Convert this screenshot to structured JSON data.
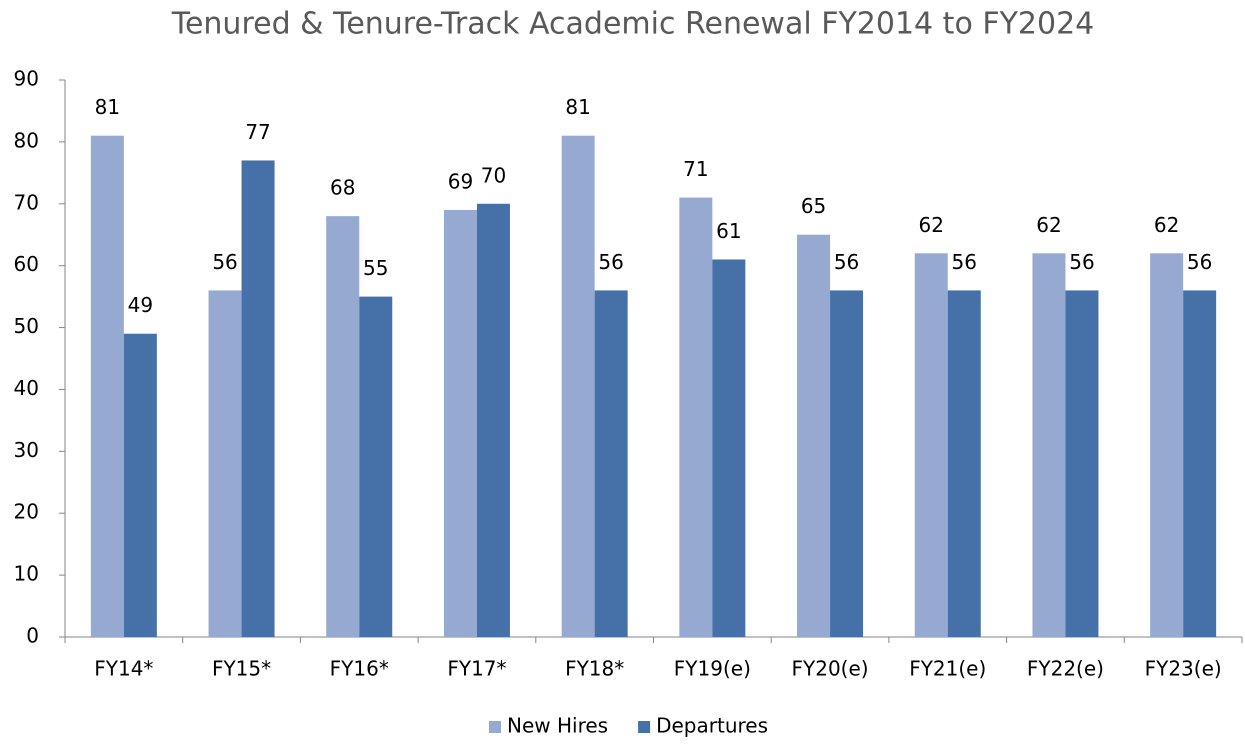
{
  "chart_data": {
    "type": "bar",
    "title": "Tenured & Tenure-Track Academic Renewal FY2014 to FY2024",
    "categories": [
      "FY14*",
      "FY15*",
      "FY16*",
      "FY17*",
      "FY18*",
      "FY19(e)",
      "FY20(e)",
      "FY21(e)",
      "FY22(e)",
      "FY23(e)"
    ],
    "series": [
      {
        "name": "New Hires",
        "color": "#95a9d1",
        "values": [
          81,
          56,
          68,
          69,
          81,
          71,
          65,
          62,
          62,
          62
        ]
      },
      {
        "name": "Departures",
        "color": "#4571a8",
        "values": [
          49,
          77,
          55,
          70,
          56,
          61,
          56,
          56,
          56,
          56
        ]
      }
    ],
    "ylim": [
      0,
      90
    ],
    "yticks": [
      0,
      10,
      20,
      30,
      40,
      50,
      60,
      70,
      80,
      90
    ],
    "grid": false,
    "legend": "bottom"
  }
}
